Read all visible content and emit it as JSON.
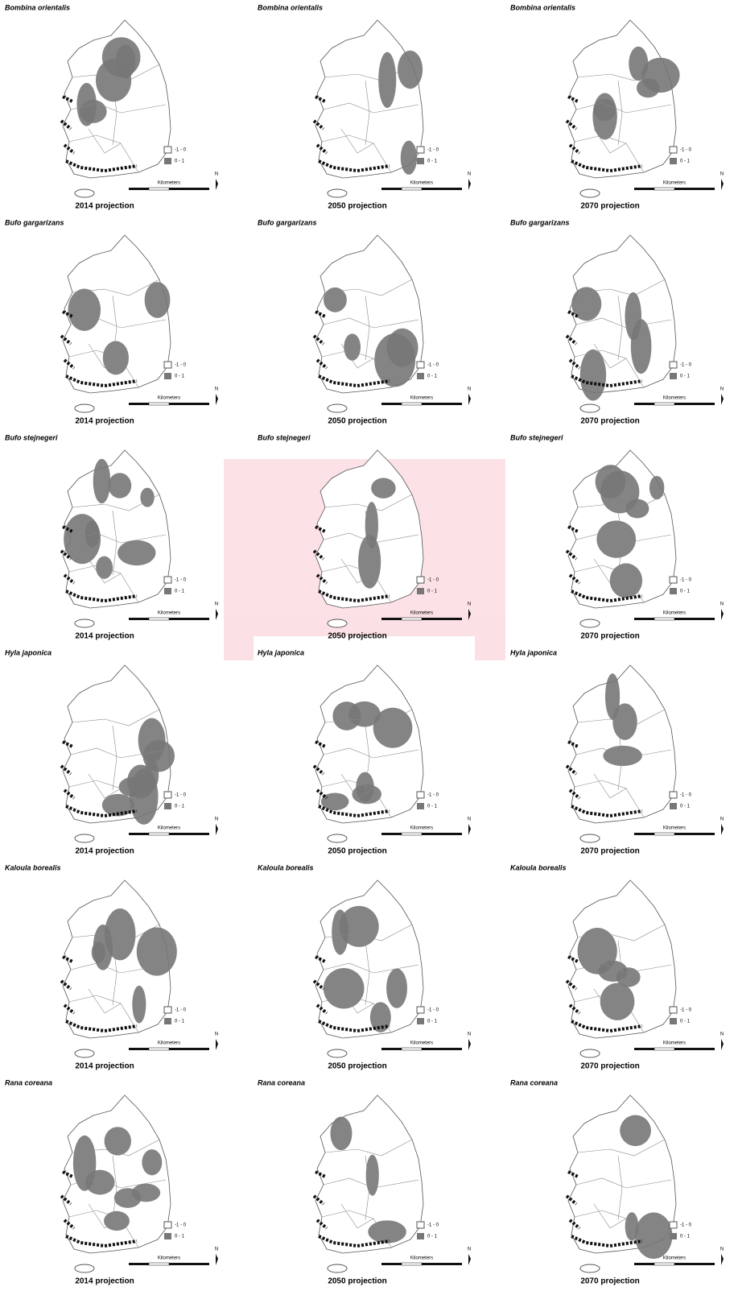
{
  "rows": [
    {
      "species": "Bombina orientalis",
      "projections": [
        "2014 projection",
        "2050 projection",
        "2070 projection"
      ]
    },
    {
      "species": "Bufo gargarizans",
      "projections": [
        "2014 projection",
        "2050 projection",
        "2070 projection"
      ]
    },
    {
      "species": "Bufo stejnegeri",
      "projections": [
        "2014 projection",
        "2050 projection",
        "2070 projection"
      ]
    },
    {
      "species": "Hyla japonica",
      "projections": [
        "2014 projection",
        "2050 projection",
        "2070 projection"
      ]
    },
    {
      "species": "Kaloula borealis",
      "projections": [
        "2014 projection",
        "2050 projection",
        "2070 projection"
      ]
    },
    {
      "species": "Rana coreana",
      "projections": [
        "2014 projection",
        "2050 projection",
        "2070 projection"
      ]
    }
  ],
  "legend": [
    "-1 - 0",
    "0 - 1"
  ],
  "scale_label": "Kilometers",
  "north": "N"
}
